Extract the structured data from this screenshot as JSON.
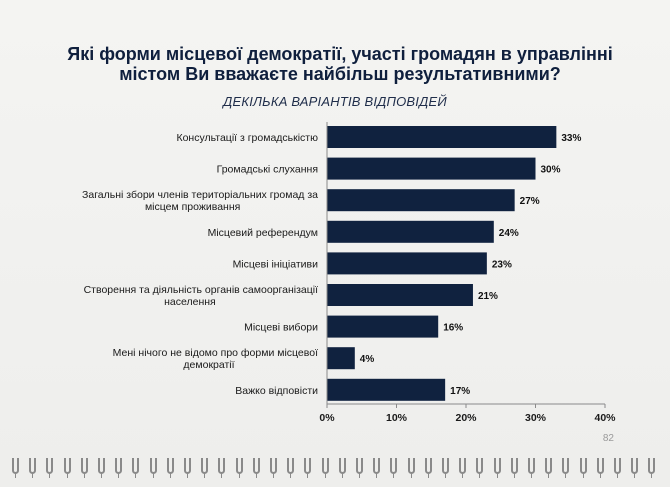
{
  "page": {
    "number": "82",
    "accent": "#10223f"
  },
  "chart_data": {
    "type": "bar",
    "orientation": "horizontal",
    "title": "Які форми місцевої демократії, участі громадян в управлінні містом Ви вважаєте найбільш результативними?",
    "subtitle": "ДЕКІЛЬКА ВАРІАНТІВ ВІДПОВІДЕЙ",
    "categories": [
      [
        "Консультації з громадськістю"
      ],
      [
        "Громадські слухання"
      ],
      [
        "Загальні збори членів територіальних громад за",
        "місцем проживання"
      ],
      [
        "Місцевий референдум"
      ],
      [
        "Місцеві ініціативи"
      ],
      [
        "Створення та діяльність органів самоорганізації",
        "населення"
      ],
      [
        "Місцеві вибори"
      ],
      [
        "Мені нічого не відомо про форми місцевої",
        "демократії"
      ],
      [
        "Важко відповісти"
      ]
    ],
    "values": [
      33,
      30,
      27,
      24,
      23,
      21,
      16,
      4,
      17
    ],
    "data_labels": [
      "33%",
      "30%",
      "27%",
      "24%",
      "23%",
      "21%",
      "16%",
      "4%",
      "17%"
    ],
    "xlim": [
      0,
      40
    ],
    "xticks": [
      "0%",
      "10%",
      "20%",
      "30%",
      "40%"
    ],
    "bar_color": "#10223f",
    "grid": false
  }
}
